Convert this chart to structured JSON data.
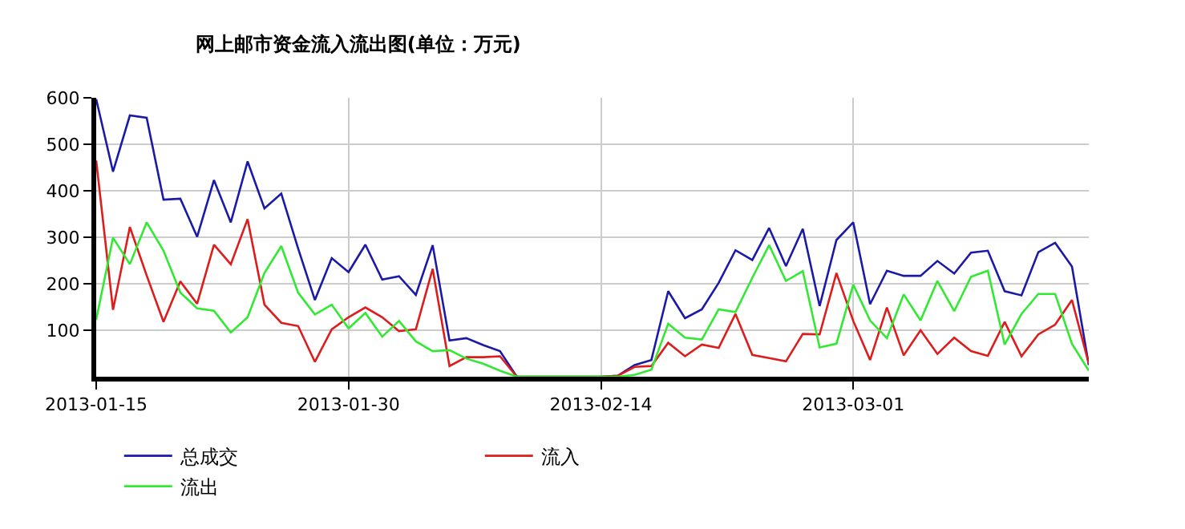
{
  "chart_data": {
    "type": "line",
    "title": "网上邮市资金流入流出图(单位：万元)",
    "x": [
      "2013-01-15",
      "2013-01-16",
      "2013-01-17",
      "2013-01-18",
      "2013-01-19",
      "2013-01-20",
      "2013-01-21",
      "2013-01-22",
      "2013-01-23",
      "2013-01-24",
      "2013-01-25",
      "2013-01-26",
      "2013-01-27",
      "2013-01-28",
      "2013-01-29",
      "2013-01-30",
      "2013-01-31",
      "2013-02-01",
      "2013-02-02",
      "2013-02-03",
      "2013-02-04",
      "2013-02-05",
      "2013-02-06",
      "2013-02-07",
      "2013-02-08",
      "2013-02-09",
      "2013-02-10",
      "2013-02-11",
      "2013-02-12",
      "2013-02-13",
      "2013-02-14",
      "2013-02-15",
      "2013-02-16",
      "2013-02-17",
      "2013-02-18",
      "2013-02-19",
      "2013-02-20",
      "2013-02-21",
      "2013-02-22",
      "2013-02-23",
      "2013-02-24",
      "2013-02-25",
      "2013-02-26",
      "2013-02-27",
      "2013-02-28",
      "2013-03-01",
      "2013-03-02",
      "2013-03-03",
      "2013-03-04",
      "2013-03-05",
      "2013-03-06",
      "2013-03-07",
      "2013-03-08",
      "2013-03-09",
      "2013-03-10",
      "2013-03-11",
      "2013-03-12",
      "2013-03-13",
      "2013-03-14",
      "2013-03-15"
    ],
    "series": [
      {
        "name": "总成交",
        "color": "#1a1aa6",
        "values": [
          597,
          441,
          562,
          557,
          381,
          383,
          301,
          423,
          332,
          463,
          362,
          394,
          276,
          165,
          255,
          225,
          284,
          209,
          216,
          176,
          283,
          78,
          83,
          68,
          55,
          0,
          0,
          0,
          0,
          0,
          0,
          2,
          25,
          36,
          184,
          126,
          145,
          202,
          272,
          251,
          320,
          238,
          318,
          152,
          294,
          332,
          156,
          228,
          217,
          217,
          249,
          222,
          267,
          271,
          184,
          175,
          268,
          288,
          237,
          25
        ]
      },
      {
        "name": "流入",
        "color": "#dd1c1c",
        "values": [
          465,
          144,
          322,
          218,
          118,
          205,
          157,
          284,
          242,
          339,
          155,
          116,
          109,
          32,
          102,
          128,
          149,
          128,
          98,
          102,
          232,
          23,
          42,
          42,
          44,
          0,
          0,
          0,
          0,
          0,
          0,
          2,
          21,
          23,
          73,
          44,
          69,
          62,
          135,
          47,
          40,
          33,
          92,
          91,
          223,
          120,
          36,
          149,
          46,
          100,
          49,
          84,
          55,
          45,
          118,
          44,
          91,
          112,
          165,
          28
        ]
      },
      {
        "name": "流出",
        "color": "#33e833",
        "values": [
          123,
          299,
          242,
          332,
          271,
          181,
          147,
          142,
          95,
          128,
          223,
          281,
          181,
          134,
          155,
          104,
          137,
          86,
          120,
          76,
          55,
          57,
          39,
          28,
          13,
          0,
          0,
          0,
          0,
          0,
          0,
          0,
          4,
          15,
          114,
          84,
          80,
          145,
          139,
          213,
          283,
          206,
          227,
          63,
          71,
          198,
          121,
          83,
          177,
          121,
          206,
          141,
          215,
          228,
          69,
          135,
          178,
          178,
          71,
          13
        ]
      }
    ],
    "xlim": [
      "2013-01-15",
      "2013-03-15"
    ],
    "xticks": [
      "2013-01-15",
      "2013-01-30",
      "2013-02-14",
      "2013-03-01"
    ],
    "ylim": [
      0,
      600
    ],
    "yticks": [
      100,
      200,
      300,
      400,
      500,
      600
    ],
    "grid": true,
    "legend": "bottom left",
    "marker": "none",
    "line_style": "solid"
  }
}
